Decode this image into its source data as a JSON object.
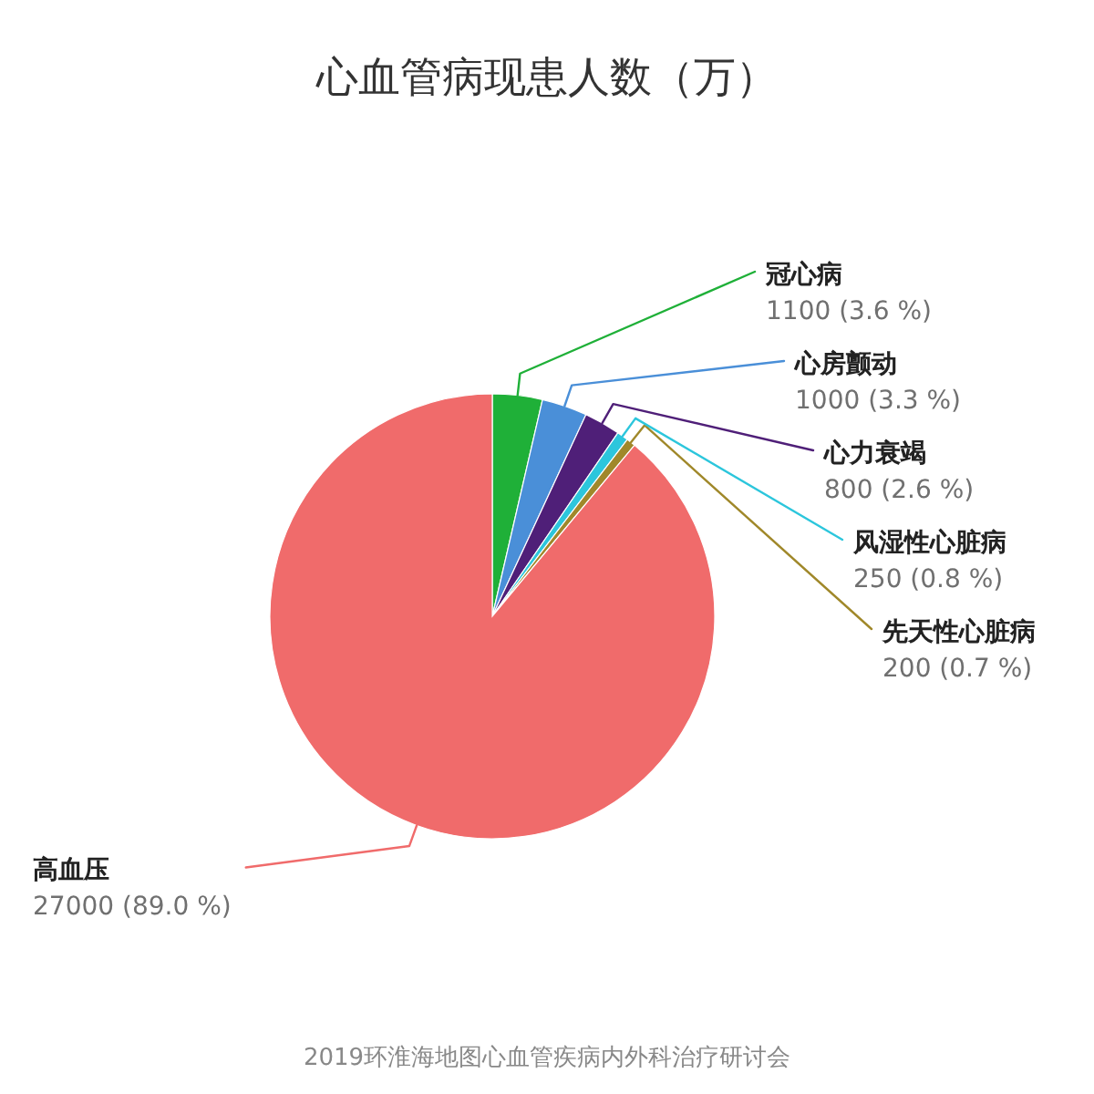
{
  "chart_data": {
    "type": "pie",
    "title": "心血管病现患人数（万）",
    "categories": [
      "冠心病",
      "心房颤动",
      "心力衰竭",
      "风湿性心脏病",
      "先天性心脏病",
      "高血压"
    ],
    "values": [
      1100,
      1000,
      800,
      250,
      200,
      27000
    ],
    "colors": [
      "#1fb038",
      "#4a8fd8",
      "#4f1f78",
      "#2cc6dc",
      "#a0882a",
      "#f06b6b"
    ],
    "value_labels": [
      "1100 (3.6 %)",
      "1000 (3.3 %)",
      "800 (2.6 %)",
      "250 (0.8 %)",
      "200 (0.7 %)",
      "27000 (89.0 %)"
    ],
    "annotations": [
      "2019环淮海地图心血管疾病内外科治疗研讨会"
    ]
  }
}
